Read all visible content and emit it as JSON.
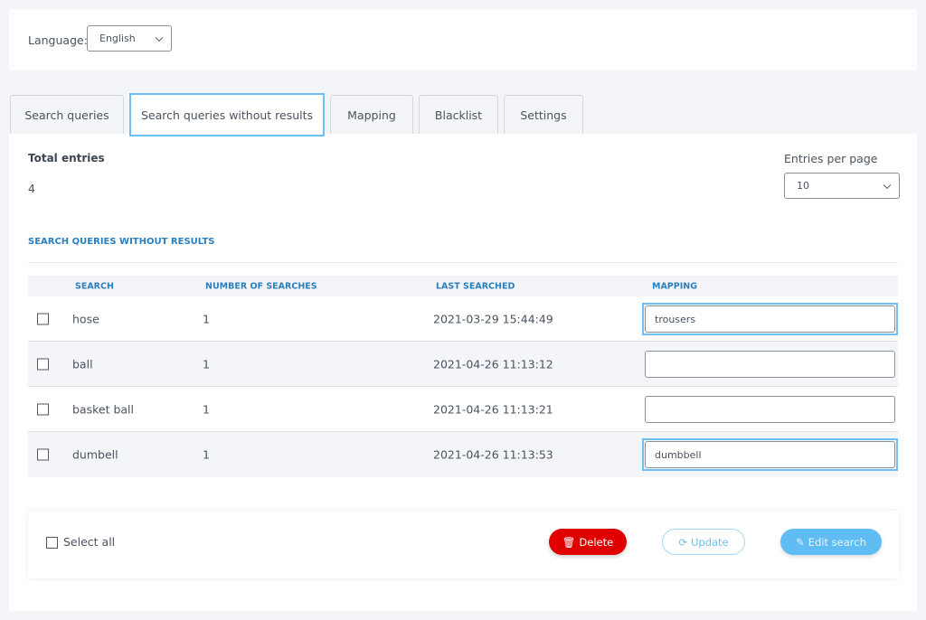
{
  "language": {
    "label": "Language:",
    "value": "English"
  },
  "tabs": [
    {
      "label": "Search queries",
      "active": false
    },
    {
      "label": "Search queries without results",
      "active": true
    },
    {
      "label": "Mapping",
      "active": false
    },
    {
      "label": "Blacklist",
      "active": false
    },
    {
      "label": "Settings",
      "active": false
    }
  ],
  "summary": {
    "total_label": "Total entries",
    "total_value": "4",
    "entries_label": "Entries per page",
    "entries_value": "10"
  },
  "section_title": "SEARCH QUERIES WITHOUT RESULTS",
  "table": {
    "headers": [
      "SEARCH",
      "NUMBER OF SEARCHES",
      "LAST SEARCHED",
      "MAPPING"
    ],
    "rows": [
      {
        "search": "hose",
        "count": "1",
        "last": "2021-03-29 15:44:49",
        "mapping": "trousers"
      },
      {
        "search": "ball",
        "count": "1",
        "last": "2021-04-26 11:13:12",
        "mapping": ""
      },
      {
        "search": "basket ball",
        "count": "1",
        "last": "2021-04-26 11:13:21",
        "mapping": ""
      },
      {
        "search": "dumbell",
        "count": "1",
        "last": "2021-04-26 11:13:53",
        "mapping": "dumbbell"
      }
    ]
  },
  "footer": {
    "select_all": "Select all",
    "delete": "Delete",
    "update": "Update",
    "edit": "Edit search"
  },
  "icons": {
    "delete": "trash-icon",
    "update": "refresh-icon",
    "edit": "edit-icon"
  },
  "colors": {
    "accent": "#6cc0f3",
    "danger": "#e00000",
    "header_text": "#2a7fbd"
  }
}
